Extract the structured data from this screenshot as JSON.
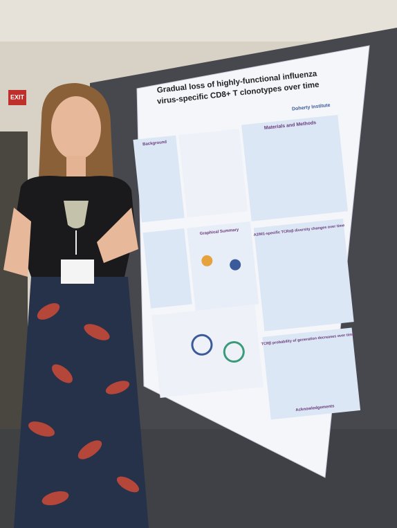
{
  "exit_sign": "EXIT",
  "poster": {
    "title_lines": [
      "Gradual loss of highly-functional influenza",
      "virus-specific CD8+ T clonotypes over time"
    ],
    "logo": "Doherty Institute",
    "sections": [
      "Background",
      "Materials and Methods",
      "Graphical Summary",
      "A2/M1-specific TCRαβ diversity changes over time",
      "TCRβ probability of generation decreases over time",
      "Acknowledgements"
    ]
  }
}
